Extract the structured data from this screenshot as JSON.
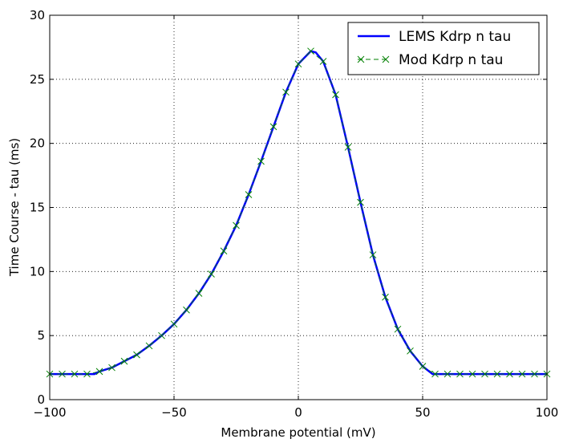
{
  "chart_data": {
    "type": "line",
    "xlabel": "Membrane potential (mV)",
    "ylabel": "Time Course - tau (ms)",
    "xlim": [
      -100,
      100
    ],
    "ylim": [
      0,
      30
    ],
    "xticks": [
      -100,
      -50,
      0,
      50,
      100
    ],
    "xtick_labels": [
      "−100",
      "−50",
      "0",
      "50",
      "100"
    ],
    "yticks": [
      0,
      5,
      10,
      15,
      20,
      25,
      30
    ],
    "ytick_labels": [
      "0",
      "5",
      "10",
      "15",
      "20",
      "25",
      "30"
    ],
    "grid": true,
    "legend_position": "top-right",
    "series": [
      {
        "name": "LEMS Kdrp n tau",
        "color": "#0000ff",
        "style": "solid",
        "x": [
          -100,
          -95,
          -90,
          -85,
          -82,
          -80,
          -75,
          -70,
          -65,
          -60,
          -55,
          -50,
          -45,
          -40,
          -35,
          -30,
          -25,
          -20,
          -15,
          -10,
          -5,
          0,
          5,
          7,
          10,
          15,
          20,
          25,
          30,
          35,
          40,
          45,
          50,
          54,
          55,
          60,
          65,
          70,
          75,
          80,
          85,
          90,
          95,
          100
        ],
        "y": [
          2.0,
          2.0,
          2.0,
          2.0,
          2.0,
          2.2,
          2.5,
          3.0,
          3.5,
          4.2,
          5.0,
          5.9,
          7.0,
          8.3,
          9.8,
          11.6,
          13.6,
          16.0,
          18.6,
          21.3,
          24.0,
          26.2,
          27.2,
          27.1,
          26.4,
          23.8,
          19.7,
          15.4,
          11.3,
          8.0,
          5.5,
          3.8,
          2.6,
          2.0,
          2.0,
          2.0,
          2.0,
          2.0,
          2.0,
          2.0,
          2.0,
          2.0,
          2.0,
          2.0
        ]
      },
      {
        "name": "Mod Kdrp n tau",
        "color": "#008000",
        "style": "dashed-x-markers",
        "x": [
          -100,
          -95,
          -90,
          -85,
          -80,
          -75,
          -70,
          -65,
          -60,
          -55,
          -50,
          -45,
          -40,
          -35,
          -30,
          -25,
          -20,
          -15,
          -10,
          -5,
          0,
          5,
          10,
          15,
          20,
          25,
          30,
          35,
          40,
          45,
          50,
          55,
          60,
          65,
          70,
          75,
          80,
          85,
          90,
          95,
          100
        ],
        "y": [
          2.0,
          2.0,
          2.0,
          2.0,
          2.2,
          2.5,
          3.0,
          3.5,
          4.2,
          5.0,
          5.9,
          7.0,
          8.3,
          9.8,
          11.6,
          13.6,
          16.0,
          18.6,
          21.3,
          24.0,
          26.2,
          27.2,
          26.4,
          23.8,
          19.7,
          15.4,
          11.3,
          8.0,
          5.5,
          3.8,
          2.6,
          2.0,
          2.0,
          2.0,
          2.0,
          2.0,
          2.0,
          2.0,
          2.0,
          2.0,
          2.0
        ]
      }
    ]
  }
}
